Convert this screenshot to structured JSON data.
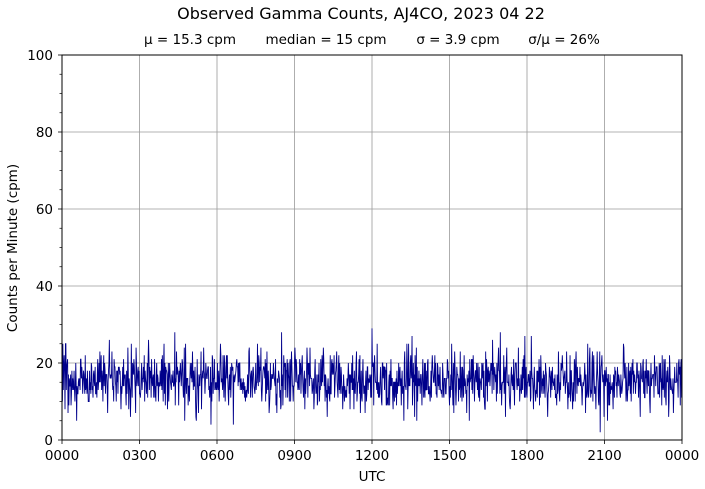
{
  "chart_data": {
    "type": "line",
    "title": "Observed Gamma Counts, AJ4CO, 2023 04 22",
    "stats": {
      "mean": "μ = 15.3 cpm",
      "median": "median = 15 cpm",
      "sigma": "σ = 3.9 cpm",
      "ratio": "σ/μ = 26%"
    },
    "xlabel": "UTC",
    "ylabel": "Counts per Minute (cpm)",
    "xlim": [
      0,
      1440
    ],
    "ylim": [
      0,
      100
    ],
    "x_ticks": [
      {
        "value": 0,
        "label": "0000"
      },
      {
        "value": 180,
        "label": "0300"
      },
      {
        "value": 360,
        "label": "0600"
      },
      {
        "value": 540,
        "label": "0900"
      },
      {
        "value": 720,
        "label": "1200"
      },
      {
        "value": 900,
        "label": "1500"
      },
      {
        "value": 1080,
        "label": "1800"
      },
      {
        "value": 1260,
        "label": "2100"
      },
      {
        "value": 1440,
        "label": "0000"
      }
    ],
    "y_ticks": [
      {
        "value": 0,
        "label": "0"
      },
      {
        "value": 20,
        "label": "20"
      },
      {
        "value": 40,
        "label": "40"
      },
      {
        "value": 60,
        "label": "60"
      },
      {
        "value": 80,
        "label": "80"
      },
      {
        "value": 100,
        "label": "100"
      }
    ],
    "grid": true,
    "series": [
      {
        "color": "#00008b",
        "sample_interval_min": 1,
        "points_count": 1440,
        "mean": 15.3,
        "std": 3.9,
        "min": 2,
        "max": 29,
        "notable_points": [
          {
            "x": 34,
            "y": 5
          },
          {
            "x": 110,
            "y": 26
          },
          {
            "x": 201,
            "y": 26
          },
          {
            "x": 237,
            "y": 25
          },
          {
            "x": 262,
            "y": 28
          },
          {
            "x": 346,
            "y": 4
          },
          {
            "x": 398,
            "y": 4
          },
          {
            "x": 435,
            "y": 24
          },
          {
            "x": 510,
            "y": 28
          },
          {
            "x": 720,
            "y": 29
          },
          {
            "x": 693,
            "y": 7
          },
          {
            "x": 813,
            "y": 27
          },
          {
            "x": 946,
            "y": 5
          },
          {
            "x": 1000,
            "y": 26
          },
          {
            "x": 1018,
            "y": 28
          },
          {
            "x": 1030,
            "y": 6
          },
          {
            "x": 1075,
            "y": 27
          },
          {
            "x": 1090,
            "y": 27
          },
          {
            "x": 1153,
            "y": 23
          },
          {
            "x": 1250,
            "y": 2
          },
          {
            "x": 1343,
            "y": 6
          },
          {
            "x": 1420,
            "y": 7
          }
        ]
      }
    ]
  }
}
